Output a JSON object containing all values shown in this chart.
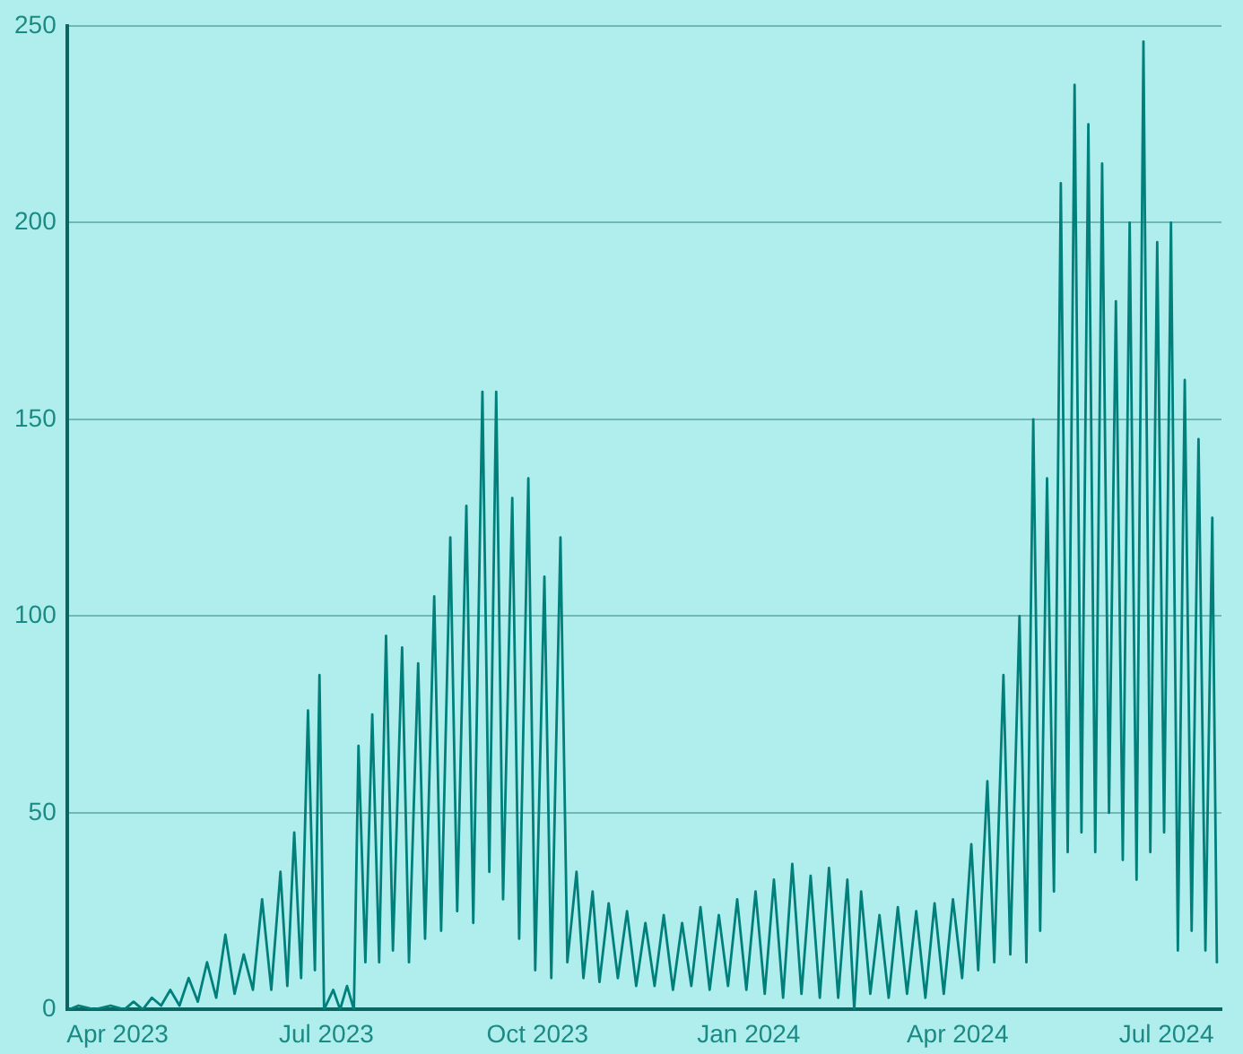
{
  "chart_data": {
    "type": "line",
    "grid": "y",
    "legend": false,
    "marker": "none",
    "line_style": "solid",
    "xlim": [
      "2023-03-10",
      "2024-07-25"
    ],
    "xticks": [
      {
        "value": "2023-04",
        "label": "Apr 2023"
      },
      {
        "value": "2023-07",
        "label": "Jul 2023"
      },
      {
        "value": "2023-10",
        "label": "Oct 2023"
      },
      {
        "value": "2024-01",
        "label": "Jan 2024"
      },
      {
        "value": "2024-04",
        "label": "Apr 2024"
      },
      {
        "value": "2024-07",
        "label": "Jul 2024"
      }
    ],
    "ylim": [
      0,
      250
    ],
    "yticks": [
      0,
      50,
      100,
      150,
      200,
      250
    ],
    "x": [
      "2023-03-11",
      "2023-03-15",
      "2023-03-22",
      "2023-03-29",
      "2023-04-04",
      "2023-04-08",
      "2023-04-12",
      "2023-04-16",
      "2023-04-20",
      "2023-04-24",
      "2023-04-28",
      "2023-05-02",
      "2023-05-06",
      "2023-05-10",
      "2023-05-14",
      "2023-05-18",
      "2023-05-22",
      "2023-05-26",
      "2023-05-30",
      "2023-06-03",
      "2023-06-07",
      "2023-06-11",
      "2023-06-14",
      "2023-06-17",
      "2023-06-20",
      "2023-06-23",
      "2023-06-26",
      "2023-06-28",
      "2023-06-30",
      "2023-07-04",
      "2023-07-07",
      "2023-07-10",
      "2023-07-13",
      "2023-07-15",
      "2023-07-18",
      "2023-07-21",
      "2023-07-24",
      "2023-07-27",
      "2023-07-30",
      "2023-08-03",
      "2023-08-06",
      "2023-08-10",
      "2023-08-13",
      "2023-08-17",
      "2023-08-20",
      "2023-08-24",
      "2023-08-27",
      "2023-08-31",
      "2023-09-03",
      "2023-09-07",
      "2023-09-10",
      "2023-09-13",
      "2023-09-16",
      "2023-09-20",
      "2023-09-23",
      "2023-09-27",
      "2023-09-30",
      "2023-10-04",
      "2023-10-07",
      "2023-10-11",
      "2023-10-14",
      "2023-10-18",
      "2023-10-21",
      "2023-10-25",
      "2023-10-28",
      "2023-11-01",
      "2023-11-05",
      "2023-11-09",
      "2023-11-13",
      "2023-11-17",
      "2023-11-21",
      "2023-11-25",
      "2023-11-29",
      "2023-12-03",
      "2023-12-07",
      "2023-12-11",
      "2023-12-15",
      "2023-12-19",
      "2023-12-23",
      "2023-12-27",
      "2023-12-31",
      "2024-01-04",
      "2024-01-08",
      "2024-01-12",
      "2024-01-16",
      "2024-01-20",
      "2024-01-24",
      "2024-01-28",
      "2024-02-01",
      "2024-02-05",
      "2024-02-09",
      "2024-02-13",
      "2024-02-16",
      "2024-02-19",
      "2024-02-23",
      "2024-02-27",
      "2024-03-02",
      "2024-03-06",
      "2024-03-10",
      "2024-03-14",
      "2024-03-18",
      "2024-03-22",
      "2024-03-26",
      "2024-03-30",
      "2024-04-03",
      "2024-04-07",
      "2024-04-10",
      "2024-04-14",
      "2024-04-17",
      "2024-04-21",
      "2024-04-24",
      "2024-04-28",
      "2024-05-01",
      "2024-05-04",
      "2024-05-07",
      "2024-05-10",
      "2024-05-13",
      "2024-05-16",
      "2024-05-19",
      "2024-05-22",
      "2024-05-25",
      "2024-05-28",
      "2024-05-31",
      "2024-06-03",
      "2024-06-06",
      "2024-06-09",
      "2024-06-12",
      "2024-06-15",
      "2024-06-18",
      "2024-06-21",
      "2024-06-24",
      "2024-06-27",
      "2024-06-30",
      "2024-07-03",
      "2024-07-06",
      "2024-07-09",
      "2024-07-12",
      "2024-07-15",
      "2024-07-18",
      "2024-07-21",
      "2024-07-23"
    ],
    "series": [
      {
        "color": "#007f7b",
        "values": [
          0,
          1,
          0,
          1,
          0,
          2,
          0,
          3,
          1,
          5,
          1,
          8,
          2,
          12,
          3,
          19,
          4,
          14,
          5,
          28,
          5,
          35,
          6,
          45,
          8,
          76,
          10,
          85,
          0,
          5,
          0,
          6,
          0,
          67,
          12,
          75,
          12,
          95,
          15,
          92,
          12,
          88,
          18,
          105,
          20,
          120,
          25,
          128,
          22,
          157,
          35,
          157,
          28,
          130,
          18,
          135,
          10,
          110,
          8,
          120,
          12,
          35,
          8,
          30,
          7,
          27,
          8,
          25,
          6,
          22,
          6,
          24,
          5,
          22,
          6,
          26,
          5,
          24,
          6,
          28,
          5,
          30,
          4,
          33,
          3,
          37,
          4,
          34,
          3,
          36,
          3,
          33,
          0,
          30,
          4,
          24,
          3,
          26,
          4,
          25,
          3,
          27,
          4,
          28,
          8,
          42,
          10,
          58,
          12,
          85,
          14,
          100,
          12,
          150,
          20,
          135,
          30,
          210,
          40,
          235,
          45,
          225,
          40,
          215,
          50,
          180,
          38,
          200,
          33,
          246,
          40,
          195,
          45,
          200,
          15,
          160,
          20,
          145,
          15,
          125,
          12
        ]
      }
    ]
  }
}
